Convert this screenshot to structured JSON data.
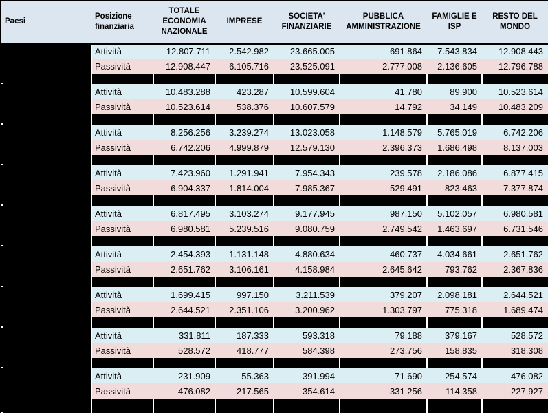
{
  "ui": {
    "colors": {
      "header_bg": "#dce6f1",
      "attivita_row_bg": "#daeef3",
      "passivita_row_bg": "#f2dcdb",
      "separator_bg": "#000000",
      "redacted_country_bg": "#000000",
      "border": "#000000",
      "separator_divider": "#ffffff"
    },
    "first_column_note": "country names redacted (solid black cells)"
  },
  "chart_data": {
    "type": "table",
    "title": "",
    "columns": [
      "Paesi",
      "Posizione finanziaria",
      "TOTALE ECONOMIA NAZIONALE",
      "IMPRESE",
      "SOCIETA' FINANZIARIE",
      "PUBBLICA AMMINISTRAZIONE",
      "FAMIGLIE E ISP",
      "RESTO DEL MONDO"
    ],
    "row_labels": {
      "attivita": "Attività",
      "passivita": "Passività"
    },
    "groups": [
      {
        "attivita": [
          "12.807.711",
          "2.542.982",
          "23.665.005",
          "691.864",
          "7.543.834",
          "12.908.443"
        ],
        "passivita": [
          "12.908.447",
          "6.105.716",
          "23.525.091",
          "2.777.008",
          "2.136.605",
          "12.796.788"
        ]
      },
      {
        "attivita": [
          "10.483.288",
          "423.287",
          "10.599.604",
          "41.780",
          "89.900",
          "10.523.614"
        ],
        "passivita": [
          "10.523.614",
          "538.376",
          "10.607.579",
          "14.792",
          "34.149",
          "10.483.209"
        ]
      },
      {
        "attivita": [
          "8.256.256",
          "3.239.274",
          "13.023.058",
          "1.148.579",
          "5.765.019",
          "6.742.206"
        ],
        "passivita": [
          "6.742.206",
          "4.999.879",
          "12.579.130",
          "2.396.373",
          "1.686.498",
          "8.137.003"
        ]
      },
      {
        "attivita": [
          "7.423.960",
          "1.291.941",
          "7.954.343",
          "239.578",
          "2.186.086",
          "6.877.415"
        ],
        "passivita": [
          "6.904.337",
          "1.814.004",
          "7.985.367",
          "529.491",
          "823.463",
          "7.377.874"
        ]
      },
      {
        "attivita": [
          "6.817.495",
          "3.103.274",
          "9.177.945",
          "987.150",
          "5.102.057",
          "6.980.581"
        ],
        "passivita": [
          "6.980.581",
          "5.239.516",
          "9.080.759",
          "2.749.542",
          "1.463.697",
          "6.731.546"
        ]
      },
      {
        "attivita": [
          "2.454.393",
          "1.131.148",
          "4.880.634",
          "460.737",
          "4.034.661",
          "2.651.762"
        ],
        "passivita": [
          "2.651.762",
          "3.106.161",
          "4.158.984",
          "2.645.642",
          "793.762",
          "2.367.836"
        ]
      },
      {
        "attivita": [
          "1.699.415",
          "997.150",
          "3.211.539",
          "379.207",
          "2.098.181",
          "2.644.521"
        ],
        "passivita": [
          "2.644.521",
          "2.351.106",
          "3.200.962",
          "1.303.797",
          "775.318",
          "1.689.474"
        ]
      },
      {
        "attivita": [
          "331.811",
          "187.333",
          "593.318",
          "79.188",
          "379.167",
          "528.572"
        ],
        "passivita": [
          "528.572",
          "418.777",
          "584.398",
          "273.756",
          "158.835",
          "318.308"
        ]
      },
      {
        "attivita": [
          "231.909",
          "55.363",
          "391.994",
          "71.690",
          "254.574",
          "476.082"
        ],
        "passivita": [
          "476.082",
          "217.565",
          "354.614",
          "331.256",
          "114.358",
          "227.927"
        ]
      }
    ]
  }
}
